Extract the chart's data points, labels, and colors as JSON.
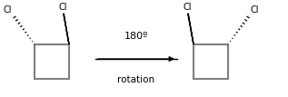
{
  "bg_color": "#ffffff",
  "square_color": "#808080",
  "bond_color": "#000000",
  "text_color": "#000000",
  "arrow_text": "180º",
  "arrow_subtext": "rotation",
  "cl_label": "Cl",
  "figsize": [
    3.17,
    1.07
  ],
  "dpi": 100
}
